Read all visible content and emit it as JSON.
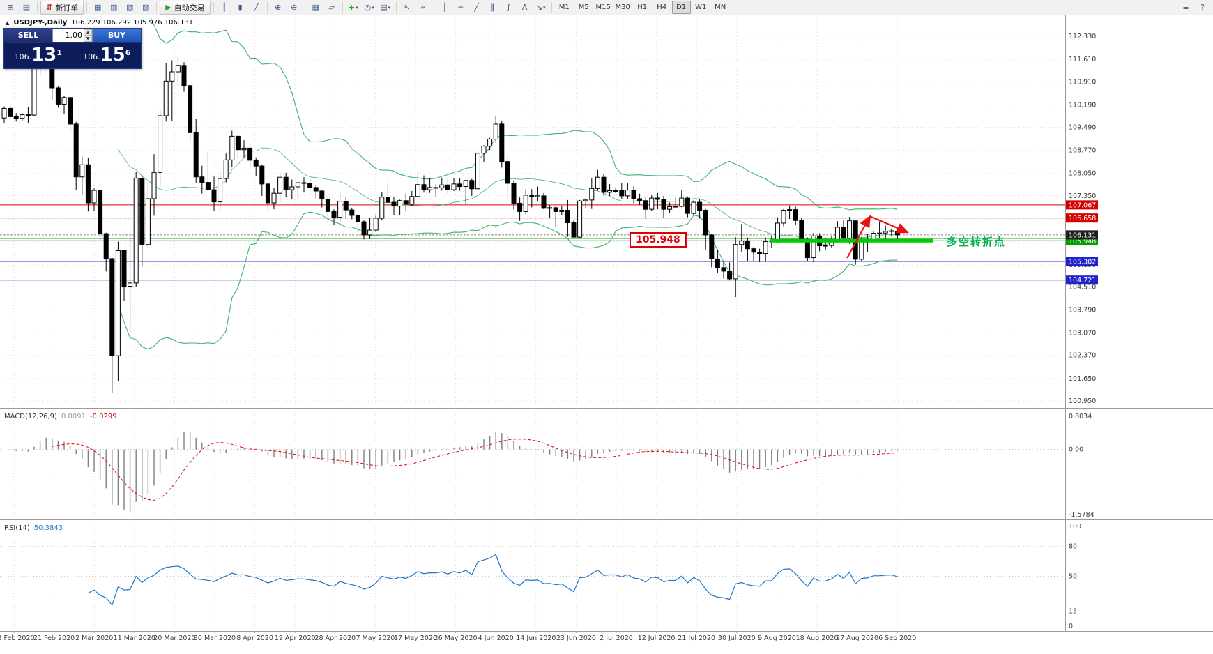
{
  "toolbar": {
    "items": [
      {
        "type": "icon",
        "name": "new-chart-icon",
        "glyph": "⊞"
      },
      {
        "type": "icon",
        "name": "profiles-icon",
        "glyph": "▤"
      },
      {
        "type": "sep"
      },
      {
        "type": "button",
        "name": "new-order-button",
        "glyph": "⇵",
        "glyph_color": "#c03030",
        "label": "新订单"
      },
      {
        "type": "sep"
      },
      {
        "type": "icon",
        "name": "market-watch-icon",
        "glyph": "▦"
      },
      {
        "type": "icon",
        "name": "data-window-icon",
        "glyph": "▥"
      },
      {
        "type": "icon",
        "name": "navigator-icon",
        "glyph": "▧"
      },
      {
        "type": "icon",
        "name": "terminal-icon",
        "glyph": "▨"
      },
      {
        "type": "sep"
      },
      {
        "type": "button",
        "name": "auto-trading-button",
        "glyph": "▶",
        "glyph_color": "#2e9e3e",
        "label": "自动交易"
      },
      {
        "type": "sep"
      },
      {
        "type": "icon",
        "name": "bar-chart-icon",
        "glyph": "┃"
      },
      {
        "type": "icon",
        "name": "candlestick-chart-icon",
        "glyph": "▮"
      },
      {
        "type": "icon",
        "name": "line-chart-icon",
        "glyph": "╱"
      },
      {
        "type": "sep"
      },
      {
        "type": "icon",
        "name": "zoom-in-icon",
        "glyph": "⊕"
      },
      {
        "type": "icon",
        "name": "zoom-out-icon",
        "glyph": "⊖"
      },
      {
        "type": "sep"
      },
      {
        "type": "icon",
        "name": "tile-windows-icon",
        "glyph": "▦"
      },
      {
        "type": "icon",
        "name": "cascade-windows-icon",
        "glyph": "▱"
      },
      {
        "type": "sep"
      },
      {
        "type": "icon",
        "name": "indicators-icon",
        "glyph": "+",
        "glyph_color": "#1faa1f",
        "dropdown": true
      },
      {
        "type": "icon",
        "name": "periods-icon",
        "glyph": "◷",
        "dropdown": true
      },
      {
        "type": "icon",
        "name": "templates-icon",
        "glyph": "▤",
        "dropdown": true
      },
      {
        "type": "sep"
      },
      {
        "type": "icon",
        "name": "cursor-icon",
        "glyph": "↖"
      },
      {
        "type": "icon",
        "name": "crosshair-icon",
        "glyph": "⌖"
      },
      {
        "type": "sep"
      },
      {
        "type": "icon",
        "name": "vertical-line-icon",
        "glyph": "│"
      },
      {
        "type": "icon",
        "name": "horizontal-line-icon",
        "glyph": "─"
      },
      {
        "type": "icon",
        "name": "trendline-icon",
        "glyph": "╱"
      },
      {
        "type": "icon",
        "name": "channel-icon",
        "glyph": "∥"
      },
      {
        "type": "icon",
        "name": "fibonacci-icon",
        "glyph": "ƒ"
      },
      {
        "type": "icon",
        "name": "text-label-icon",
        "glyph": "A"
      },
      {
        "type": "icon",
        "name": "arrows-tool-icon",
        "glyph": "↘",
        "dropdown": true
      }
    ],
    "timeframes": [
      {
        "label": "M1"
      },
      {
        "label": "M5"
      },
      {
        "label": "M15"
      },
      {
        "label": "M30"
      },
      {
        "label": "H1"
      },
      {
        "label": "H4"
      },
      {
        "label": "D1",
        "active": true
      },
      {
        "label": "W1"
      },
      {
        "label": "MN"
      }
    ],
    "right_icons": [
      {
        "name": "menu-icon",
        "glyph": "≡"
      },
      {
        "name": "help-icon",
        "glyph": "?"
      }
    ]
  },
  "chart": {
    "title_arrow": "▲",
    "title_symbol": "USDJPY-,Daily",
    "title_ohlc": "106.229 106.292 105.976 106.131"
  },
  "trade_panel": {
    "sell_label": "SELL",
    "buy_label": "BUY",
    "volume": "1.00",
    "spin_up": "▲",
    "spin_down": "▼",
    "sell_price": {
      "prefix": "106.",
      "big": "13",
      "sup": "1"
    },
    "buy_price": {
      "prefix": "106.",
      "big": "15",
      "sup": "6"
    }
  },
  "annotations": {
    "support_price": "105.948",
    "turning_point": "多空转折点"
  },
  "indicators": {
    "macd": {
      "name": "MACD(12,26,9)",
      "value_main": "0.0091",
      "value_signal": "-0.0299",
      "axis": [
        "0.8034",
        "0.00",
        "-1.5784"
      ]
    },
    "rsi": {
      "name": "RSI(14)",
      "value": "50.3843",
      "axis": [
        "100",
        "80",
        "50",
        "15",
        "0"
      ]
    }
  },
  "price_axis": {
    "ticks": [
      "112.330",
      "111.610",
      "110.910",
      "110.190",
      "109.490",
      "108.770",
      "108.050",
      "107.350",
      "106.630",
      "105.910",
      "105.190",
      "104.510",
      "103.790",
      "103.070",
      "102.370",
      "101.650",
      "100.950"
    ],
    "tags": [
      {
        "label": "107.067",
        "price": 107.067,
        "color": "#d40000"
      },
      {
        "label": "106.658",
        "price": 106.658,
        "color": "#d40000"
      },
      {
        "label": "105.948",
        "price": 105.948,
        "color": "#00a000"
      },
      {
        "label": "106.131",
        "price": 106.131,
        "color": "#1f1f1f"
      },
      {
        "label": "105.302",
        "price": 105.302,
        "color": "#2222cc"
      },
      {
        "label": "104.721",
        "price": 104.721,
        "color": "#2222cc"
      }
    ]
  },
  "date_axis": [
    "12 Feb 2020",
    "21 Feb 2020",
    "2 Mar 2020",
    "11 Mar 2020",
    "20 Mar 2020",
    "30 Mar 2020",
    "8 Apr 2020",
    "19 Apr 2020",
    "28 Apr 2020",
    "7 May 2020",
    "17 May 2020",
    "26 May 2020",
    "4 Jun 2020",
    "14 Jun 2020",
    "23 Jun 2020",
    "2 Jul 2020",
    "12 Jul 2020",
    "21 Jul 2020",
    "30 Jul 2020",
    "9 Aug 2020",
    "18 Aug 2020",
    "27 Aug 2020",
    "6 Sep 2020"
  ],
  "chart_data": {
    "type": "candlestick",
    "symbol": "USDJPY",
    "timeframe": "Daily",
    "bollinger": {
      "period": 20,
      "deviation": 2
    },
    "macd": {
      "fast": 12,
      "slow": 26,
      "signal": 9
    },
    "rsi_period": 14,
    "bid": {
      "price": 106.131,
      "color": "#888888"
    },
    "hlines": [
      {
        "price": 107.067,
        "color": "#e00000"
      },
      {
        "price": 106.658,
        "color": "#e00000"
      },
      {
        "price": 106.02,
        "color": "#22a022"
      },
      {
        "price": 105.948,
        "color": "#22a022"
      },
      {
        "price": 105.302,
        "color": "#3333cc"
      },
      {
        "price": 104.721,
        "color": "#3333cc"
      }
    ],
    "green_segment": {
      "price": 105.948,
      "from_index": 127.8,
      "to_index": 154.9,
      "color": "#00cc00",
      "width": 5
    },
    "arrows": {
      "color": "#e81010",
      "segments": [
        {
          "from": [
            140.6,
            105.41
          ],
          "to": [
            144.4,
            106.71
          ]
        },
        {
          "from": [
            144.4,
            106.71
          ],
          "to": [
            150.7,
            106.21
          ]
        }
      ]
    },
    "ohlc": [
      [
        109.78,
        110.14,
        109.62,
        110.08
      ],
      [
        110.08,
        110.16,
        109.76,
        109.82
      ],
      [
        109.82,
        109.93,
        109.67,
        109.77
      ],
      [
        109.77,
        109.93,
        109.68,
        109.88
      ],
      [
        109.88,
        110.13,
        109.62,
        109.87
      ],
      [
        109.87,
        111.59,
        109.84,
        111.38
      ],
      [
        111.38,
        112.23,
        111.14,
        112.08
      ],
      [
        112.08,
        112.12,
        111.46,
        111.6
      ],
      [
        111.6,
        111.67,
        110.34,
        110.72
      ],
      [
        110.72,
        110.76,
        110.1,
        110.21
      ],
      [
        110.21,
        110.47,
        109.89,
        110.42
      ],
      [
        110.42,
        110.45,
        109.33,
        109.59
      ],
      [
        109.59,
        109.66,
        107.52,
        107.94
      ],
      [
        107.94,
        108.57,
        107.38,
        108.32
      ],
      [
        108.32,
        108.54,
        106.86,
        107.13
      ],
      [
        107.13,
        107.58,
        106.87,
        107.52
      ],
      [
        107.52,
        107.56,
        105.98,
        106.17
      ],
      [
        106.17,
        106.2,
        104.99,
        105.39
      ],
      [
        105.39,
        105.42,
        101.19,
        102.36
      ],
      [
        102.36,
        105.92,
        101.57,
        105.64
      ],
      [
        105.64,
        105.67,
        104.08,
        104.53
      ],
      [
        104.53,
        106.07,
        103.08,
        104.63
      ],
      [
        104.63,
        108.09,
        104.5,
        107.9
      ],
      [
        107.9,
        107.96,
        105.14,
        105.83
      ],
      [
        105.83,
        107.76,
        105.72,
        107.26
      ],
      [
        107.26,
        108.65,
        106.73,
        108.08
      ],
      [
        108.08,
        110.02,
        107.66,
        109.85
      ],
      [
        109.85,
        111.5,
        109.67,
        110.93
      ],
      [
        110.93,
        111.58,
        109.68,
        111.22
      ],
      [
        111.22,
        111.71,
        110.77,
        111.42
      ],
      [
        111.42,
        111.52,
        110.6,
        110.79
      ],
      [
        110.79,
        110.85,
        109.06,
        109.32
      ],
      [
        109.32,
        109.75,
        107.74,
        107.94
      ],
      [
        107.94,
        108.29,
        107.42,
        107.77
      ],
      [
        107.77,
        108.72,
        107.49,
        107.54
      ],
      [
        107.54,
        107.95,
        106.89,
        107.16
      ],
      [
        107.16,
        108.08,
        106.92,
        107.89
      ],
      [
        107.89,
        108.67,
        107.77,
        108.47
      ],
      [
        108.47,
        109.38,
        108.25,
        109.21
      ],
      [
        109.21,
        109.26,
        108.5,
        108.79
      ],
      [
        108.79,
        109.09,
        108.55,
        108.84
      ],
      [
        108.84,
        108.99,
        108.21,
        108.46
      ],
      [
        108.46,
        108.55,
        107.98,
        108.28
      ],
      [
        108.28,
        108.33,
        107.35,
        107.72
      ],
      [
        107.72,
        107.78,
        106.92,
        107.13
      ],
      [
        107.13,
        107.59,
        106.93,
        107.43
      ],
      [
        107.43,
        108.08,
        107.15,
        107.93
      ],
      [
        107.93,
        108.07,
        107.31,
        107.54
      ],
      [
        107.54,
        107.86,
        107.26,
        107.63
      ],
      [
        107.63,
        107.77,
        107.27,
        107.76
      ],
      [
        107.76,
        107.93,
        107.45,
        107.74
      ],
      [
        107.74,
        107.86,
        107.4,
        107.61
      ],
      [
        107.61,
        107.7,
        107.27,
        107.5
      ],
      [
        107.5,
        107.52,
        106.99,
        107.25
      ],
      [
        107.25,
        107.33,
        106.55,
        106.86
      ],
      [
        106.86,
        106.93,
        106.43,
        106.68
      ],
      [
        106.68,
        107.5,
        106.41,
        107.18
      ],
      [
        107.18,
        107.3,
        106.64,
        106.91
      ],
      [
        106.91,
        106.98,
        106.62,
        106.74
      ],
      [
        106.74,
        106.8,
        106.2,
        106.54
      ],
      [
        106.54,
        106.6,
        105.99,
        106.13
      ],
      [
        106.13,
        106.65,
        106.0,
        106.28
      ],
      [
        106.28,
        106.75,
        106.22,
        106.65
      ],
      [
        106.65,
        107.47,
        106.58,
        107.31
      ],
      [
        107.31,
        107.77,
        107.07,
        107.15
      ],
      [
        107.15,
        107.3,
        106.75,
        107.03
      ],
      [
        107.03,
        107.23,
        106.74,
        107.2
      ],
      [
        107.2,
        107.42,
        106.86,
        107.09
      ],
      [
        107.09,
        107.5,
        107.03,
        107.33
      ],
      [
        107.33,
        108.09,
        107.27,
        107.7
      ],
      [
        107.7,
        107.99,
        107.45,
        107.54
      ],
      [
        107.54,
        107.91,
        107.44,
        107.61
      ],
      [
        107.61,
        107.71,
        107.32,
        107.6
      ],
      [
        107.6,
        107.92,
        107.51,
        107.69
      ],
      [
        107.69,
        107.92,
        107.42,
        107.54
      ],
      [
        107.54,
        107.9,
        107.5,
        107.72
      ],
      [
        107.72,
        107.89,
        107.51,
        107.64
      ],
      [
        107.64,
        107.83,
        107.06,
        107.83
      ],
      [
        107.83,
        107.88,
        107.35,
        107.57
      ],
      [
        107.57,
        108.72,
        107.52,
        108.68
      ],
      [
        108.68,
        108.93,
        108.4,
        108.9
      ],
      [
        108.9,
        109.16,
        108.78,
        109.12
      ],
      [
        109.12,
        109.85,
        109.01,
        109.59
      ],
      [
        109.59,
        109.7,
        108.23,
        108.42
      ],
      [
        108.42,
        108.52,
        107.26,
        107.74
      ],
      [
        107.74,
        107.84,
        106.92,
        107.12
      ],
      [
        107.12,
        107.3,
        106.57,
        106.86
      ],
      [
        106.86,
        107.55,
        106.77,
        107.37
      ],
      [
        107.37,
        107.56,
        106.99,
        107.32
      ],
      [
        107.32,
        107.64,
        107.19,
        107.35
      ],
      [
        107.35,
        107.44,
        106.93,
        106.96
      ],
      [
        106.96,
        107.06,
        106.66,
        106.98
      ],
      [
        106.98,
        107.02,
        106.36,
        106.86
      ],
      [
        106.86,
        107.04,
        106.75,
        106.9
      ],
      [
        106.9,
        107.22,
        106.07,
        106.51
      ],
      [
        106.51,
        106.6,
        106.06,
        106.06
      ],
      [
        106.06,
        107.22,
        106.04,
        107.19
      ],
      [
        107.19,
        107.27,
        106.95,
        107.22
      ],
      [
        107.22,
        107.89,
        106.94,
        107.58
      ],
      [
        107.58,
        108.16,
        107.51,
        107.93
      ],
      [
        107.93,
        108.03,
        107.36,
        107.46
      ],
      [
        107.46,
        107.72,
        107.35,
        107.51
      ],
      [
        107.51,
        107.62,
        107.43,
        107.51
      ],
      [
        107.51,
        107.76,
        107.25,
        107.35
      ],
      [
        107.35,
        107.75,
        107.25,
        107.53
      ],
      [
        107.53,
        107.64,
        107.12,
        107.26
      ],
      [
        107.26,
        107.42,
        107.07,
        107.2
      ],
      [
        107.2,
        107.3,
        106.64,
        106.93
      ],
      [
        106.93,
        107.38,
        106.89,
        107.28
      ],
      [
        107.28,
        107.44,
        106.93,
        107.24
      ],
      [
        107.24,
        107.35,
        106.66,
        106.93
      ],
      [
        106.93,
        107.14,
        106.8,
        107.01
      ],
      [
        107.01,
        107.29,
        106.98,
        107.02
      ],
      [
        107.02,
        107.53,
        107.0,
        107.28
      ],
      [
        107.28,
        107.33,
        106.68,
        106.8
      ],
      [
        106.8,
        107.21,
        106.75,
        107.15
      ],
      [
        107.15,
        107.25,
        106.64,
        106.9
      ],
      [
        106.9,
        106.94,
        105.68,
        106.13
      ],
      [
        106.13,
        106.16,
        105.12,
        105.38
      ],
      [
        105.38,
        105.68,
        104.95,
        105.11
      ],
      [
        105.11,
        105.31,
        104.77,
        105.0
      ],
      [
        105.0,
        105.27,
        104.72,
        104.76
      ],
      [
        104.76,
        106.06,
        104.19,
        105.83
      ],
      [
        105.83,
        106.47,
        105.6,
        105.94
      ],
      [
        105.94,
        106.05,
        105.3,
        105.7
      ],
      [
        105.7,
        105.75,
        105.31,
        105.59
      ],
      [
        105.59,
        105.7,
        105.28,
        105.55
      ],
      [
        105.55,
        106.05,
        105.29,
        105.92
      ],
      [
        105.92,
        106.1,
        105.73,
        105.94
      ],
      [
        105.94,
        106.68,
        105.87,
        106.5
      ],
      [
        106.5,
        106.94,
        106.4,
        106.9
      ],
      [
        106.9,
        107.05,
        106.63,
        106.92
      ],
      [
        106.92,
        107.01,
        106.43,
        106.58
      ],
      [
        106.58,
        106.66,
        105.87,
        105.99
      ],
      [
        105.99,
        106.05,
        105.31,
        105.42
      ],
      [
        105.42,
        106.19,
        105.27,
        106.1
      ],
      [
        106.1,
        106.18,
        105.62,
        105.79
      ],
      [
        105.79,
        106.02,
        105.66,
        105.8
      ],
      [
        105.8,
        106.08,
        105.74,
        105.98
      ],
      [
        105.98,
        106.56,
        105.88,
        106.37
      ],
      [
        106.37,
        106.58,
        105.99,
        106.03
      ],
      [
        106.03,
        106.69,
        105.85,
        106.57
      ],
      [
        106.57,
        106.6,
        105.2,
        105.37
      ],
      [
        105.37,
        106.06,
        105.3,
        105.91
      ],
      [
        105.91,
        106.17,
        105.59,
        105.96
      ],
      [
        105.96,
        106.24,
        105.9,
        106.18
      ],
      [
        106.18,
        106.55,
        106.04,
        106.19
      ],
      [
        106.19,
        106.42,
        105.99,
        106.24
      ],
      [
        106.24,
        106.33,
        106.08,
        106.26
      ],
      [
        106.229,
        106.292,
        105.976,
        106.131
      ]
    ]
  }
}
